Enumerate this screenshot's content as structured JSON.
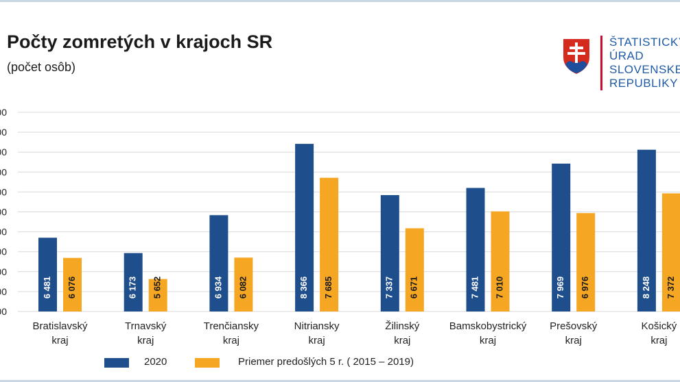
{
  "logo": {
    "lines": [
      "ŠTATISTICKÝ",
      "ÚRAD",
      "SLOVENSKEJ",
      "REPUBLIKY"
    ],
    "icon": "slovak-coat-of-arms-icon"
  },
  "colors": {
    "series_2020": "#1f4e8c",
    "series_avg": "#f5a623",
    "grid": "#d9d9d9",
    "shield_red": "#d52b1e",
    "shield_blue": "#1f4e9c"
  },
  "chart_data": {
    "type": "bar",
    "title": "Počty zomretých v krajoch SR",
    "subtitle": "(počet osôb)",
    "categories": [
      [
        "Bratislavský",
        "kraj"
      ],
      [
        "Trnavský",
        "kraj"
      ],
      [
        "Trenčiansky",
        "kraj"
      ],
      [
        "Nitriansky",
        "kraj"
      ],
      [
        "Žilinský",
        "kraj"
      ],
      [
        "Bamskobystrický",
        "kraj"
      ],
      [
        "Prešovský",
        "kraj"
      ],
      [
        "Košický",
        "kraj"
      ]
    ],
    "series": [
      {
        "name": "2020",
        "values": [
          6481,
          6173,
          6934,
          8366,
          7337,
          7481,
          7969,
          8248
        ],
        "labels": [
          "6 481",
          "6 173",
          "6 934",
          "8 366",
          "7 337",
          "7 481",
          "7 969",
          "8 248"
        ]
      },
      {
        "name": "Priemer predošlých 5 r. ( 2015 – 2019)",
        "values": [
          6076,
          5652,
          6082,
          7685,
          6671,
          7010,
          6976,
          7372
        ],
        "labels": [
          "6 076",
          "5 652",
          "6 082",
          "7 685",
          "6 671",
          "7 010",
          "6 976",
          "7 372"
        ]
      }
    ],
    "ylim": [
      5000,
      9000
    ],
    "grid": true,
    "legend": "bottom"
  }
}
